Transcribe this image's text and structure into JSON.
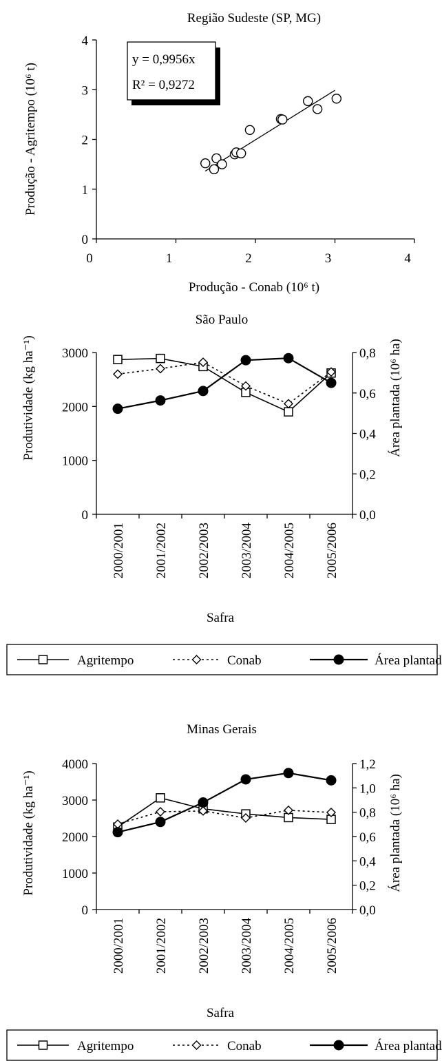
{
  "chart_data": [
    {
      "type": "scatter",
      "title": "Região Sudeste (SP, MG)",
      "xlabel": "Produção - Conab (10⁶ t)",
      "ylabel": "Produção - Agritempo (10⁶ t)",
      "xlim": [
        0,
        4
      ],
      "ylim": [
        0,
        4
      ],
      "x_ticks": [
        "0",
        "1",
        "2",
        "3",
        "4"
      ],
      "y_ticks": [
        "0",
        "1",
        "2",
        "3",
        "4"
      ],
      "annotation": {
        "equation": "y = 0,9956x",
        "r2": "R² = 0,9272"
      },
      "trendline": {
        "slope": 0.9956,
        "x_range": [
          1.37,
          3.0
        ]
      },
      "points": [
        {
          "x": 1.37,
          "y": 1.52
        },
        {
          "x": 1.48,
          "y": 1.4
        },
        {
          "x": 1.51,
          "y": 1.62
        },
        {
          "x": 1.58,
          "y": 1.5
        },
        {
          "x": 1.74,
          "y": 1.7
        },
        {
          "x": 1.76,
          "y": 1.74
        },
        {
          "x": 1.82,
          "y": 1.72
        },
        {
          "x": 1.93,
          "y": 2.19
        },
        {
          "x": 2.32,
          "y": 2.41
        },
        {
          "x": 2.34,
          "y": 2.4
        },
        {
          "x": 2.66,
          "y": 2.77
        },
        {
          "x": 2.78,
          "y": 2.61
        },
        {
          "x": 3.02,
          "y": 2.82
        }
      ]
    },
    {
      "type": "line",
      "title": "São Paulo",
      "xlabel": "Safra",
      "ylabel_left": "Produtividade (kg ha⁻¹)",
      "ylabel_right": "Área plantada (10⁶ ha)",
      "ylim_left": [
        0,
        3000
      ],
      "ylim_right": [
        0,
        0.8
      ],
      "left_ticks": [
        "0",
        "1000",
        "2000",
        "3000"
      ],
      "right_ticks": [
        "0,0",
        "0,2",
        "0,4",
        "0,6",
        "0,8"
      ],
      "categories": [
        "2000/2001",
        "2001/2002",
        "2002/2003",
        "2003/2004",
        "2004/2005",
        "2005/2006"
      ],
      "series": [
        {
          "name": "Agritempo",
          "axis": "left",
          "values": [
            2870,
            2890,
            2740,
            2260,
            1900,
            2620
          ]
        },
        {
          "name": "Conab",
          "axis": "left",
          "values": [
            2600,
            2700,
            2820,
            2380,
            2050,
            2640
          ]
        },
        {
          "name": "Área plantada",
          "axis": "right",
          "values": [
            0.522,
            0.563,
            0.61,
            0.762,
            0.772,
            0.65
          ]
        }
      ]
    },
    {
      "type": "line",
      "title": "Minas Gerais",
      "xlabel": "Safra",
      "ylabel_left": "Produtividade (kg ha⁻¹)",
      "ylabel_right": "Área plantada (10⁶ ha)",
      "ylim_left": [
        0,
        4000
      ],
      "ylim_right": [
        0,
        1.2
      ],
      "left_ticks": [
        "0",
        "1000",
        "2000",
        "3000",
        "4000"
      ],
      "right_ticks": [
        "0,0",
        "0,2",
        "0,4",
        "0,6",
        "0,8",
        "1,0",
        "1,2"
      ],
      "categories": [
        "2000/2001",
        "2001/2002",
        "2002/2003",
        "2003/2004",
        "2004/2005",
        "2005/2006"
      ],
      "series": [
        {
          "name": "Agritempo",
          "axis": "left",
          "values": [
            2260,
            3060,
            2760,
            2620,
            2520,
            2470
          ]
        },
        {
          "name": "Conab",
          "axis": "left",
          "values": [
            2340,
            2680,
            2700,
            2510,
            2720,
            2660
          ]
        },
        {
          "name": "Área plantada",
          "axis": "right",
          "values": [
            0.636,
            0.72,
            0.88,
            1.07,
            1.122,
            1.062
          ]
        }
      ]
    }
  ]
}
